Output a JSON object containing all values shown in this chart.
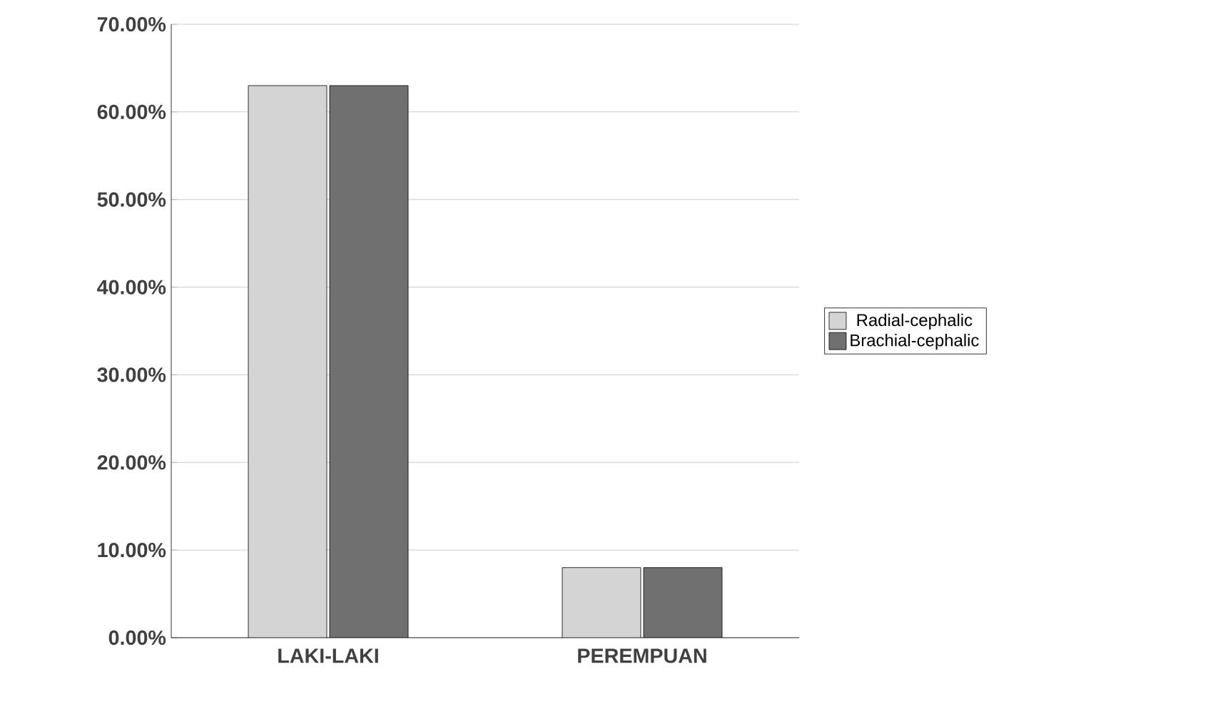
{
  "chart_data": {
    "type": "bar",
    "categories": [
      "LAKI-LAKI",
      "PEREMPUAN"
    ],
    "series": [
      {
        "name": "Radial-cephalic",
        "color": "#d4d4d4",
        "values": [
          63,
          8
        ]
      },
      {
        "name": "Brachial-cephalic",
        "color": "#707070",
        "values": [
          63,
          8
        ]
      }
    ],
    "ylim": [
      0,
      70
    ],
    "yticks": [
      {
        "value": 0,
        "label": "0.00%"
      },
      {
        "value": 10,
        "label": "10.00%"
      },
      {
        "value": 20,
        "label": "20.00%"
      },
      {
        "value": 30,
        "label": "30.00%"
      },
      {
        "value": 40,
        "label": "40.00%"
      },
      {
        "value": 50,
        "label": "50.00%"
      },
      {
        "value": 60,
        "label": "60.00%"
      },
      {
        "value": 70,
        "label": "70.00%"
      }
    ],
    "grid": "y",
    "legend": "right"
  }
}
